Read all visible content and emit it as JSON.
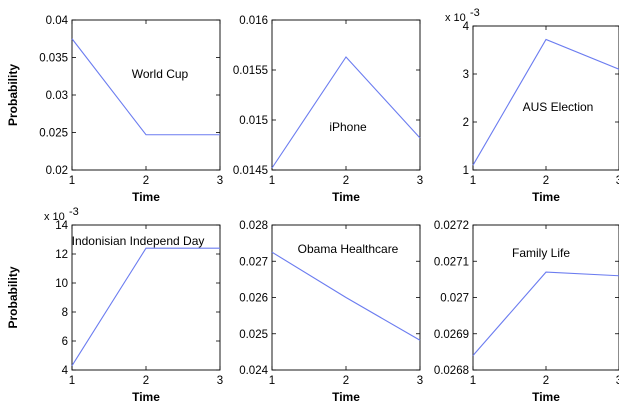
{
  "chart_data": [
    {
      "type": "line",
      "annotation": "World Cup",
      "xlabel": "Time",
      "ylabel": "Probability",
      "x": [
        1,
        2,
        3
      ],
      "series": [
        {
          "values": [
            0.0375,
            0.0247,
            0.0247
          ]
        }
      ],
      "xlim": [
        1,
        3
      ],
      "ylim": [
        0.02,
        0.04
      ],
      "xticks": [
        "1",
        "2",
        "3"
      ],
      "yticks": [
        0.02,
        0.025,
        0.03,
        0.035,
        0.04
      ],
      "ytick_labels": [
        "0.02",
        "0.025",
        "0.03",
        "0.035",
        "0.04"
      ],
      "exponent_label": "",
      "color": "#6b7cf0"
    },
    {
      "type": "line",
      "annotation": "iPhone",
      "xlabel": "Time",
      "ylabel": "",
      "x": [
        1,
        2,
        3
      ],
      "series": [
        {
          "values": [
            0.01452,
            0.01563,
            0.01482
          ]
        }
      ],
      "xlim": [
        1,
        3
      ],
      "ylim": [
        0.0145,
        0.016
      ],
      "xticks": [
        "1",
        "2",
        "3"
      ],
      "yticks": [
        0.0145,
        0.015,
        0.0155,
        0.016
      ],
      "ytick_labels": [
        "0.0145",
        "0.015",
        "0.0155",
        "0.016"
      ],
      "exponent_label": "",
      "color": "#6b7cf0"
    },
    {
      "type": "line",
      "annotation": "AUS Election",
      "xlabel": "Time",
      "ylabel": "",
      "x": [
        1,
        2,
        3
      ],
      "series": [
        {
          "values": [
            1.1,
            3.72,
            3.1
          ]
        }
      ],
      "xlim": [
        1,
        3
      ],
      "ylim": [
        1,
        4
      ],
      "xticks": [
        "1",
        "2",
        "3"
      ],
      "yticks": [
        1,
        2,
        3,
        4
      ],
      "ytick_labels": [
        "1",
        "2",
        "3",
        "4"
      ],
      "exponent_label": "x 10",
      "exponent_power": "-3",
      "color": "#6b7cf0"
    },
    {
      "type": "line",
      "annotation": "Indonisian Independ Day",
      "xlabel": "Time",
      "ylabel": "Probability",
      "x": [
        1,
        2,
        3
      ],
      "series": [
        {
          "values": [
            4.3,
            12.4,
            12.4
          ]
        }
      ],
      "xlim": [
        1,
        3
      ],
      "ylim": [
        4,
        14
      ],
      "xticks": [
        "1",
        "2",
        "3"
      ],
      "yticks": [
        4,
        6,
        8,
        10,
        12,
        14
      ],
      "ytick_labels": [
        "4",
        "6",
        "8",
        "10",
        "12",
        "14"
      ],
      "exponent_label": "x 10",
      "exponent_power": "-3",
      "color": "#6b7cf0"
    },
    {
      "type": "line",
      "annotation": "Obama Healthcare",
      "xlabel": "Time",
      "ylabel": "",
      "x": [
        1,
        2,
        3
      ],
      "series": [
        {
          "values": [
            0.02725,
            0.026,
            0.02482
          ]
        }
      ],
      "xlim": [
        1,
        3
      ],
      "ylim": [
        0.024,
        0.028
      ],
      "xticks": [
        "1",
        "2",
        "3"
      ],
      "yticks": [
        0.024,
        0.025,
        0.026,
        0.027,
        0.028
      ],
      "ytick_labels": [
        "0.024",
        "0.025",
        "0.026",
        "0.027",
        "0.028"
      ],
      "exponent_label": "",
      "color": "#6b7cf0"
    },
    {
      "type": "line",
      "annotation": "Family Life",
      "xlabel": "Time",
      "ylabel": "",
      "x": [
        1,
        2,
        3
      ],
      "series": [
        {
          "values": [
            0.02684,
            0.02707,
            0.02706
          ]
        }
      ],
      "xlim": [
        1,
        3
      ],
      "ylim": [
        0.0268,
        0.0272
      ],
      "xticks": [
        "1",
        "2",
        "3"
      ],
      "yticks": [
        0.0268,
        0.0269,
        0.027,
        0.0271,
        0.0272
      ],
      "ytick_labels": [
        "0.0268",
        "0.0269",
        "0.027",
        "0.0271",
        "0.0272"
      ],
      "exponent_label": "",
      "color": "#6b7cf0"
    }
  ]
}
